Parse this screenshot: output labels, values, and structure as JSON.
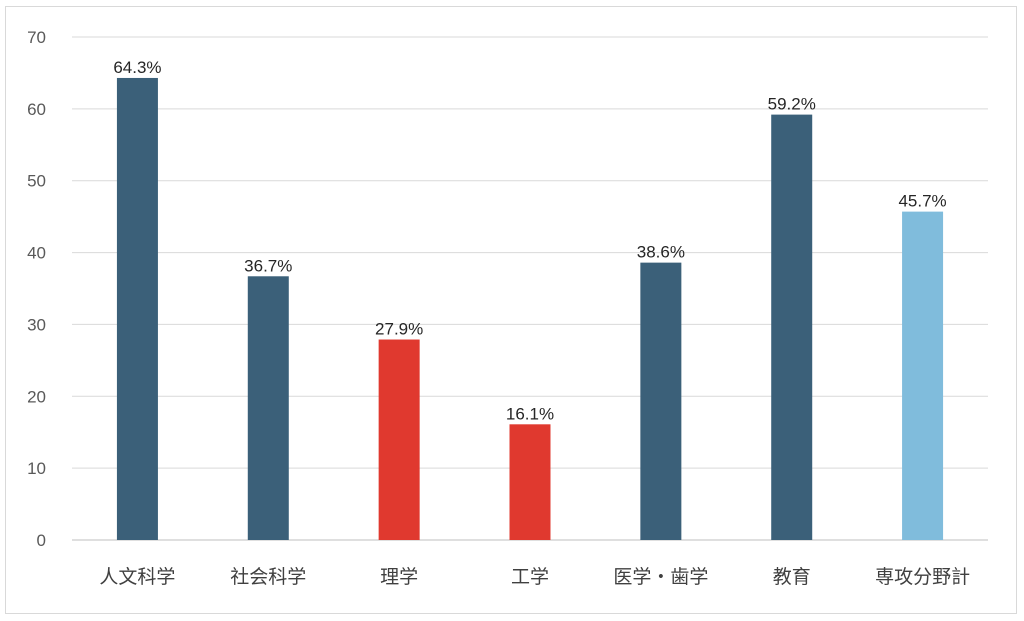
{
  "chart_data": {
    "type": "bar",
    "categories": [
      "人文科学",
      "社会科学",
      "理学",
      "工学",
      "医学・歯学",
      "教育",
      "専攻分野計"
    ],
    "values": [
      64.3,
      36.7,
      27.9,
      16.1,
      38.6,
      59.2,
      45.7
    ],
    "data_labels": [
      "64.3%",
      "36.7%",
      "27.9%",
      "16.1%",
      "38.6%",
      "59.2%",
      "45.7%"
    ],
    "colors": [
      "#3b6079",
      "#3b6079",
      "#e0392f",
      "#e0392f",
      "#3b6079",
      "#3b6079",
      "#80bcdc"
    ],
    "title": "",
    "xlabel": "",
    "ylabel": "",
    "ylim": [
      0,
      70
    ],
    "yticks": [
      0,
      10,
      20,
      30,
      40,
      50,
      60,
      70
    ],
    "grid": true,
    "legend": "none"
  }
}
